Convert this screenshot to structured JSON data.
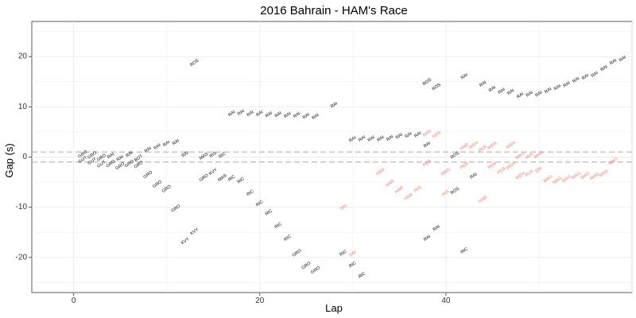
{
  "chart_data": {
    "type": "scatter",
    "title": "2016 Bahrain - HAM's Race",
    "xlabel": "Lap",
    "ylabel": "Gap (s)",
    "xlim": [
      -4.5,
      60
    ],
    "ylim": [
      -27,
      27
    ],
    "xticks": [
      0,
      20,
      40
    ],
    "yticks": [
      -20,
      -10,
      0,
      10,
      20
    ],
    "grid": true,
    "reference_lines": [
      1,
      -1
    ],
    "colors": {
      "normal": "#000000",
      "highlight": "#f8766d",
      "refline": "#b3b3b3",
      "grid": "#ebebeb",
      "axis": "#333333"
    },
    "points": [
      {
        "x": 1,
        "y": 0.5,
        "label": "GRO",
        "h": false
      },
      {
        "x": 1,
        "y": -0.6,
        "label": "GUT",
        "h": false
      },
      {
        "x": 2,
        "y": 0.3,
        "label": "GRO",
        "h": false
      },
      {
        "x": 2,
        "y": -0.9,
        "label": "GUT",
        "h": false
      },
      {
        "x": 3,
        "y": -0.2,
        "label": "GRO",
        "h": false
      },
      {
        "x": 3,
        "y": -1.5,
        "label": "GUT",
        "h": false
      },
      {
        "x": 4,
        "y": 0.2,
        "label": "RAI",
        "h": false
      },
      {
        "x": 4,
        "y": -1.4,
        "label": "GRO",
        "h": false
      },
      {
        "x": 5,
        "y": -0.3,
        "label": "RAI",
        "h": false
      },
      {
        "x": 5,
        "y": -1.9,
        "label": "GRO",
        "h": false
      },
      {
        "x": 6,
        "y": 0.5,
        "label": "RAI",
        "h": false
      },
      {
        "x": 6,
        "y": -1.4,
        "label": "GRO",
        "h": false
      },
      {
        "x": 7,
        "y": -0.3,
        "label": "BOT",
        "h": false
      },
      {
        "x": 7,
        "y": -1.6,
        "label": "GRO",
        "h": false
      },
      {
        "x": 8,
        "y": 1.4,
        "label": "RAI",
        "h": false
      },
      {
        "x": 8,
        "y": -3.6,
        "label": "GRO",
        "h": false
      },
      {
        "x": 9,
        "y": 2.0,
        "label": "RAI",
        "h": false
      },
      {
        "x": 9,
        "y": -5.5,
        "label": "GRO",
        "h": false
      },
      {
        "x": 10,
        "y": 2.6,
        "label": "RAI",
        "h": false
      },
      {
        "x": 10,
        "y": -6.4,
        "label": "GRO",
        "h": false
      },
      {
        "x": 11,
        "y": 2.9,
        "label": "RAI",
        "h": false
      },
      {
        "x": 11,
        "y": -10.3,
        "label": "GRO",
        "h": false
      },
      {
        "x": 12,
        "y": 0.5,
        "label": "RAI",
        "h": false
      },
      {
        "x": 12,
        "y": -16.8,
        "label": "KVY",
        "h": false
      },
      {
        "x": 13,
        "y": 18.7,
        "label": "ROS",
        "h": false
      },
      {
        "x": 13,
        "y": -14.9,
        "label": "KVY",
        "h": false
      },
      {
        "x": 14,
        "y": 0.1,
        "label": "MAS",
        "h": false
      },
      {
        "x": 14,
        "y": -4.2,
        "label": "GRO",
        "h": false
      },
      {
        "x": 15,
        "y": 0.4,
        "label": "RIS",
        "h": false
      },
      {
        "x": 15,
        "y": -3.0,
        "label": "KVY",
        "h": false
      },
      {
        "x": 16,
        "y": 0.3,
        "label": "RIC",
        "h": false
      },
      {
        "x": 16,
        "y": -4.2,
        "label": "MAS",
        "h": false
      },
      {
        "x": 17,
        "y": 8.6,
        "label": "RAI",
        "h": false
      },
      {
        "x": 17,
        "y": -4.3,
        "label": "RIC",
        "h": false
      },
      {
        "x": 18,
        "y": 8.8,
        "label": "RAI",
        "h": false
      },
      {
        "x": 18,
        "y": -4.7,
        "label": "RIC",
        "h": false
      },
      {
        "x": 19,
        "y": 8.6,
        "label": "RAI",
        "h": false
      },
      {
        "x": 19,
        "y": -7.2,
        "label": "RIC",
        "h": false
      },
      {
        "x": 20,
        "y": 8.6,
        "label": "RAI",
        "h": false
      },
      {
        "x": 20,
        "y": -9.3,
        "label": "RIC",
        "h": false
      },
      {
        "x": 21,
        "y": 8.4,
        "label": "RAI",
        "h": false
      },
      {
        "x": 21,
        "y": -11.1,
        "label": "RIC",
        "h": false
      },
      {
        "x": 22,
        "y": 8.4,
        "label": "RAI",
        "h": false
      },
      {
        "x": 22,
        "y": -13.7,
        "label": "RIC",
        "h": false
      },
      {
        "x": 23,
        "y": 8.3,
        "label": "RAI",
        "h": false
      },
      {
        "x": 23,
        "y": -16.2,
        "label": "RIC",
        "h": false
      },
      {
        "x": 24,
        "y": 8.3,
        "label": "RAI",
        "h": false
      },
      {
        "x": 24,
        "y": -19.2,
        "label": "GRO",
        "h": false
      },
      {
        "x": 25,
        "y": 8.1,
        "label": "RAI",
        "h": false
      },
      {
        "x": 25,
        "y": -21.7,
        "label": "GRO",
        "h": false
      },
      {
        "x": 26,
        "y": 8.0,
        "label": "RAI",
        "h": false
      },
      {
        "x": 26,
        "y": -22.6,
        "label": "GRO",
        "h": false
      },
      {
        "x": 28,
        "y": 10.3,
        "label": "RAI",
        "h": false
      },
      {
        "x": 29,
        "y": -19.2,
        "label": "RIC",
        "h": false
      },
      {
        "x": 29,
        "y": -10.1,
        "label": "SAI",
        "h": true
      },
      {
        "x": 30,
        "y": 3.5,
        "label": "RAI",
        "h": false
      },
      {
        "x": 30,
        "y": -19.3,
        "label": "SAI",
        "h": true
      },
      {
        "x": 30,
        "y": -21.5,
        "label": "RIC",
        "h": false
      },
      {
        "x": 31,
        "y": 3.6,
        "label": "RAI",
        "h": false
      },
      {
        "x": 31,
        "y": -23.6,
        "label": "RIC",
        "h": false
      },
      {
        "x": 32,
        "y": 3.6,
        "label": "RAI",
        "h": false
      },
      {
        "x": 33,
        "y": 3.6,
        "label": "RAI",
        "h": false
      },
      {
        "x": 33,
        "y": -3.0,
        "label": "HAR",
        "h": true
      },
      {
        "x": 34,
        "y": 3.7,
        "label": "RAI",
        "h": false
      },
      {
        "x": 34,
        "y": -5.3,
        "label": "HAR",
        "h": true
      },
      {
        "x": 35,
        "y": 4.1,
        "label": "RAI",
        "h": false
      },
      {
        "x": 35,
        "y": -6.6,
        "label": "HAR",
        "h": true
      },
      {
        "x": 36,
        "y": 4.3,
        "label": "RAI",
        "h": false
      },
      {
        "x": 36,
        "y": -8.0,
        "label": "HAR",
        "h": true
      },
      {
        "x": 37,
        "y": 4.4,
        "label": "RAI",
        "h": false
      },
      {
        "x": 37,
        "y": -6.4,
        "label": "HUL",
        "h": true
      },
      {
        "x": 38,
        "y": 2.4,
        "label": "RAI",
        "h": false
      },
      {
        "x": 38,
        "y": 14.9,
        "label": "ROS",
        "h": false
      },
      {
        "x": 38,
        "y": 4.7,
        "label": "NAS",
        "h": true
      },
      {
        "x": 38,
        "y": -1.3,
        "label": "PER",
        "h": true
      },
      {
        "x": 38,
        "y": -16.2,
        "label": "RAI",
        "h": false
      },
      {
        "x": 39,
        "y": 13.9,
        "label": "ROS",
        "h": false
      },
      {
        "x": 39,
        "y": 4.4,
        "label": "NAS",
        "h": true
      },
      {
        "x": 39,
        "y": -14.2,
        "label": "RAI",
        "h": false
      },
      {
        "x": 40,
        "y": -7.2,
        "label": "HUL",
        "h": true
      },
      {
        "x": 40,
        "y": -3.0,
        "label": "MAG",
        "h": true
      },
      {
        "x": 41,
        "y": -6.8,
        "label": "ROS",
        "h": false
      },
      {
        "x": 41,
        "y": 0.3,
        "label": "ROS",
        "h": false
      },
      {
        "x": 42,
        "y": 2.0,
        "label": "HAR",
        "h": true
      },
      {
        "x": 42,
        "y": -1.8,
        "label": "PER",
        "h": true
      },
      {
        "x": 42,
        "y": -18.7,
        "label": "RIC",
        "h": false
      },
      {
        "x": 42,
        "y": 16.0,
        "label": "RAI",
        "h": false
      },
      {
        "x": 43,
        "y": 2.3,
        "label": "WEH",
        "h": true
      },
      {
        "x": 43,
        "y": -3.8,
        "label": "RAI",
        "h": false
      },
      {
        "x": 44,
        "y": 14.5,
        "label": "RAI",
        "h": false
      },
      {
        "x": 44,
        "y": 1.6,
        "label": "PER",
        "h": true
      },
      {
        "x": 44,
        "y": -8.5,
        "label": "HAR",
        "h": true
      },
      {
        "x": 45,
        "y": 13.5,
        "label": "RAI",
        "h": false
      },
      {
        "x": 45,
        "y": 2.2,
        "label": "WEH",
        "h": true
      },
      {
        "x": 45,
        "y": -1.8,
        "label": "PER",
        "h": true
      },
      {
        "x": 46,
        "y": 13.1,
        "label": "RAI",
        "h": false
      },
      {
        "x": 46,
        "y": -2.8,
        "label": "PER",
        "h": true
      },
      {
        "x": 47,
        "y": 12.9,
        "label": "RAI",
        "h": false
      },
      {
        "x": 47,
        "y": 2.3,
        "label": "WEH",
        "h": true
      },
      {
        "x": 47,
        "y": -1.8,
        "label": "WEH",
        "h": true
      },
      {
        "x": 48,
        "y": 12.2,
        "label": "RAI",
        "h": false
      },
      {
        "x": 48,
        "y": 0.2,
        "label": "MAG",
        "h": true
      },
      {
        "x": 48,
        "y": -3.8,
        "label": "WEH",
        "h": true
      },
      {
        "x": 49,
        "y": 12.5,
        "label": "RAI",
        "h": false
      },
      {
        "x": 49,
        "y": 0.2,
        "label": "HUL",
        "h": true
      },
      {
        "x": 49,
        "y": -3.3,
        "label": "PLR",
        "h": true
      },
      {
        "x": 50,
        "y": 12.5,
        "label": "RAI",
        "h": false
      },
      {
        "x": 50,
        "y": 0.4,
        "label": "MAG",
        "h": true
      },
      {
        "x": 50,
        "y": -2.6,
        "label": "ERI",
        "h": true
      },
      {
        "x": 51,
        "y": 13.2,
        "label": "RAI",
        "h": false
      },
      {
        "x": 51,
        "y": -4.4,
        "label": "MAG",
        "h": true
      },
      {
        "x": 52,
        "y": 13.8,
        "label": "RAI",
        "h": false
      },
      {
        "x": 52,
        "y": -4.7,
        "label": "MAG",
        "h": true
      },
      {
        "x": 53,
        "y": 14.4,
        "label": "RAI",
        "h": false
      },
      {
        "x": 53,
        "y": -4.4,
        "label": "MAG",
        "h": true
      },
      {
        "x": 54,
        "y": 15.3,
        "label": "RAI",
        "h": false
      },
      {
        "x": 54,
        "y": -3.8,
        "label": "MAG",
        "h": true
      },
      {
        "x": 55,
        "y": 15.9,
        "label": "RAI",
        "h": false
      },
      {
        "x": 55,
        "y": -3.8,
        "label": "MAG",
        "h": true
      },
      {
        "x": 56,
        "y": 16.4,
        "label": "RAI",
        "h": false
      },
      {
        "x": 56,
        "y": -3.9,
        "label": "MAG",
        "h": true
      },
      {
        "x": 57,
        "y": 17.6,
        "label": "RAI",
        "h": false
      },
      {
        "x": 57,
        "y": -3.3,
        "label": "MAG",
        "h": true
      },
      {
        "x": 58,
        "y": 18.9,
        "label": "RAI",
        "h": false
      },
      {
        "x": 58,
        "y": -0.9,
        "label": "MAG",
        "h": true
      },
      {
        "x": 59,
        "y": 19.5,
        "label": "RAI",
        "h": false
      }
    ]
  }
}
